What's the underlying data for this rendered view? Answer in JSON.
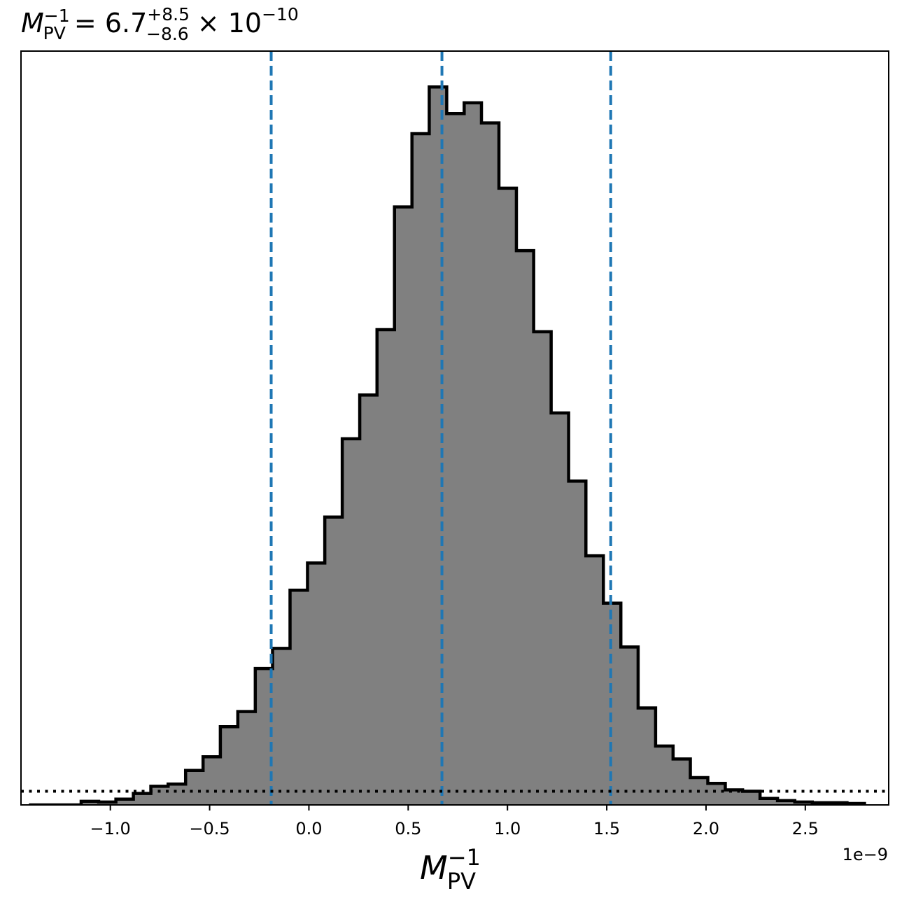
{
  "chart_data": {
    "type": "histogram",
    "title": {
      "symbol": "M",
      "subscript": "PV",
      "superscript": "−1",
      "value_text": " = 6.7",
      "upper_err": "+8.5",
      "lower_err": "−8.6",
      "times_text": " × 10",
      "exponent": "−10"
    },
    "xlabel": {
      "symbol": "M",
      "subscript": "PV",
      "superscript": "−1"
    },
    "x_offset_text": "1e−9",
    "xlim": [
      -1.45,
      2.92
    ],
    "ylim": [
      0,
      1.05
    ],
    "x_ticks": [
      -1.0,
      -0.5,
      0.0,
      0.5,
      1.0,
      1.5,
      2.0,
      2.5
    ],
    "x_tick_labels": [
      "−1.0",
      "−0.5",
      "0.0",
      "0.5",
      "1.0",
      "1.5",
      "2.0",
      "2.5"
    ],
    "bin_edges": [
      -1.41,
      -1.322,
      -1.235,
      -1.147,
      -1.059,
      -0.972,
      -0.884,
      -0.796,
      -0.709,
      -0.621,
      -0.533,
      -0.446,
      -0.358,
      -0.27,
      -0.183,
      -0.095,
      -0.007,
      0.08,
      0.168,
      0.256,
      0.343,
      0.431,
      0.519,
      0.606,
      0.694,
      0.782,
      0.869,
      0.957,
      1.045,
      1.132,
      1.22,
      1.308,
      1.395,
      1.483,
      1.571,
      1.658,
      1.746,
      1.834,
      1.921,
      2.009,
      2.097,
      2.184,
      2.272,
      2.36,
      2.447,
      2.535,
      2.623,
      2.71,
      2.798
    ],
    "counts": [
      0.0,
      0.0,
      0.0,
      0.005,
      0.004,
      0.008,
      0.016,
      0.026,
      0.029,
      0.048,
      0.067,
      0.109,
      0.13,
      0.19,
      0.218,
      0.299,
      0.337,
      0.401,
      0.51,
      0.571,
      0.662,
      0.833,
      0.935,
      1.0,
      0.963,
      0.978,
      0.95,
      0.859,
      0.772,
      0.659,
      0.546,
      0.451,
      0.347,
      0.281,
      0.22,
      0.135,
      0.082,
      0.064,
      0.038,
      0.03,
      0.021,
      0.019,
      0.009,
      0.006,
      0.004,
      0.003,
      0.003,
      0.002
    ],
    "fill_color": "#808080",
    "edge_color": "#000000",
    "quantile_lines": {
      "values": [
        -0.19,
        0.67,
        1.52
      ],
      "color": "#1f77b4",
      "style": "dashed"
    },
    "horizontal_line": {
      "value": 0.019,
      "color": "#000000",
      "style": "dotted"
    }
  }
}
